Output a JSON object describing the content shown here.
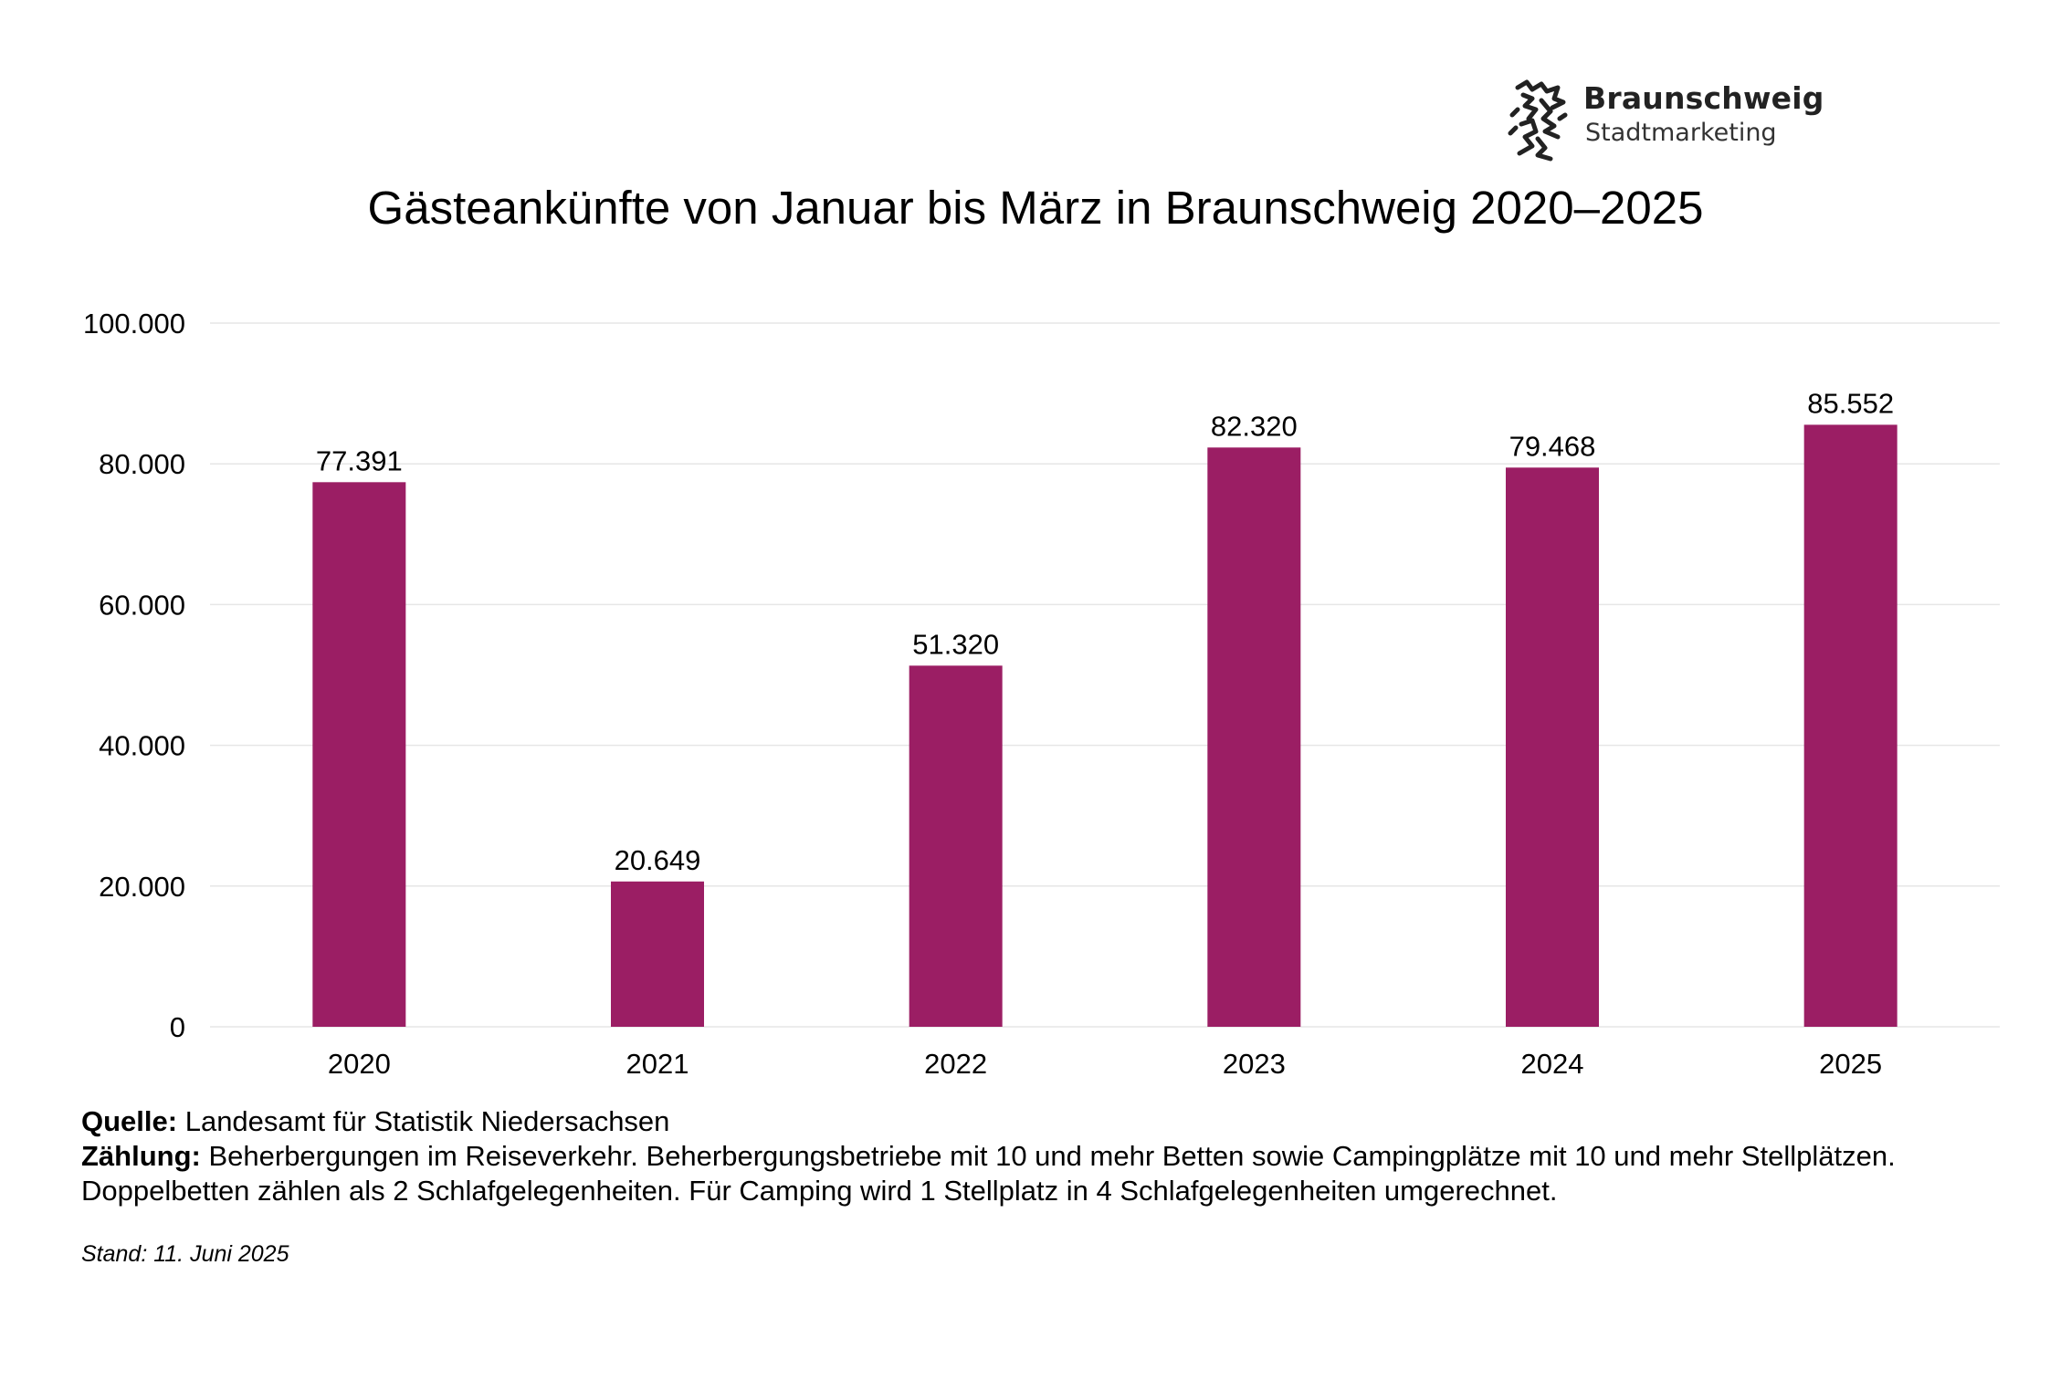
{
  "logo": {
    "name": "Braunschweig",
    "subtitle": "Stadtmarketing"
  },
  "colors": {
    "bar": "#9b1e64",
    "grid": "#e6e6e6",
    "text": "#000000"
  },
  "chart_data": {
    "type": "bar",
    "title": "Gästeankünfte von Januar bis März in Braunschweig 2020–2025",
    "xlabel": "",
    "ylabel": "",
    "categories": [
      "2020",
      "2021",
      "2022",
      "2023",
      "2024",
      "2025"
    ],
    "values": [
      77391,
      20649,
      51320,
      82320,
      79468,
      85552
    ],
    "data_labels": [
      "77.391",
      "20.649",
      "51.320",
      "82.320",
      "79.468",
      "85.552"
    ],
    "yticks": [
      0,
      20000,
      40000,
      60000,
      80000,
      100000
    ],
    "ytick_labels": [
      "0",
      "20.000",
      "40.000",
      "60.000",
      "80.000",
      "100.000"
    ],
    "ylim": [
      0,
      100000
    ],
    "grid": true,
    "legend": "none"
  },
  "notes": {
    "source_label": "Quelle:",
    "source_text": " Landesamt für Statistik Niedersachsen",
    "count_label": "Zählung:",
    "count_text": " Beherbergungen im Reiseverkehr. Beherbergungsbetriebe mit 10 und mehr Betten sowie Campingplätze mit 10 und mehr Stellplätzen.",
    "count_text_2": "Doppelbetten zählen als 2 Schlafgelegenheiten. Für Camping wird 1 Stellplatz in 4 Schlafgelegenheiten umgerechnet.",
    "stand": "Stand: 11. Juni 2025"
  }
}
